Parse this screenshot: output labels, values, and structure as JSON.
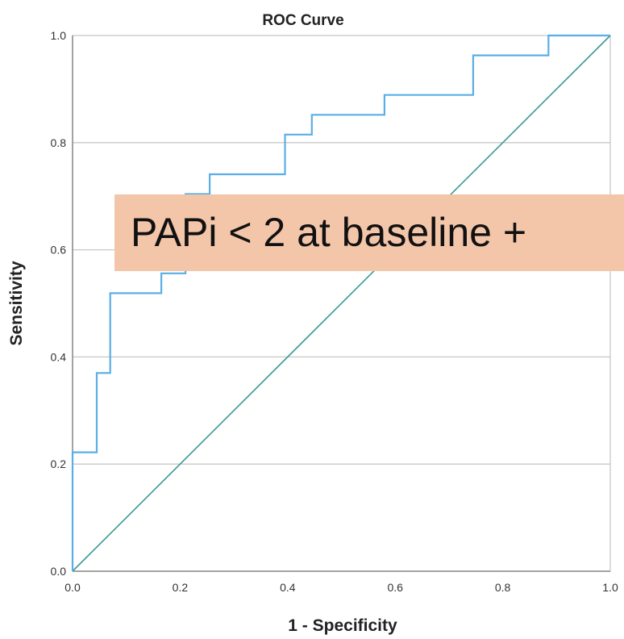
{
  "chart_data": {
    "type": "line",
    "title": "ROC Curve",
    "xlabel": "1 - Specificity",
    "ylabel": "Sensitivity",
    "xlim": [
      0.0,
      1.0
    ],
    "ylim": [
      0.0,
      1.0
    ],
    "x_ticks": [
      "0.0",
      "0.2",
      "0.4",
      "0.6",
      "0.8",
      "1.0"
    ],
    "y_ticks": [
      "0.0",
      "0.2",
      "0.4",
      "0.6",
      "0.8",
      "1.0"
    ],
    "grid": "horizontal",
    "series": [
      {
        "color": "#5aaee6",
        "style": "step",
        "x": [
          0.0,
          0.0,
          0.045,
          0.045,
          0.07,
          0.07,
          0.165,
          0.165,
          0.21,
          0.21,
          0.255,
          0.255,
          0.395,
          0.395,
          0.445,
          0.445,
          0.58,
          0.58,
          0.745,
          0.745,
          0.885,
          0.885,
          1.0
        ],
        "y": [
          0.0,
          0.222,
          0.222,
          0.37,
          0.37,
          0.519,
          0.519,
          0.556,
          0.556,
          0.704,
          0.704,
          0.741,
          0.741,
          0.815,
          0.815,
          0.852,
          0.852,
          0.889,
          0.889,
          0.963,
          0.963,
          1.0,
          1.0
        ]
      },
      {
        "color": "#3a9a8f",
        "style": "reference",
        "x": [
          0.0,
          1.0
        ],
        "y": [
          0.0,
          1.0
        ]
      }
    ]
  },
  "overlay": {
    "text": "PAPi < 2 at baseline + ",
    "background": "#f3c5a9"
  }
}
